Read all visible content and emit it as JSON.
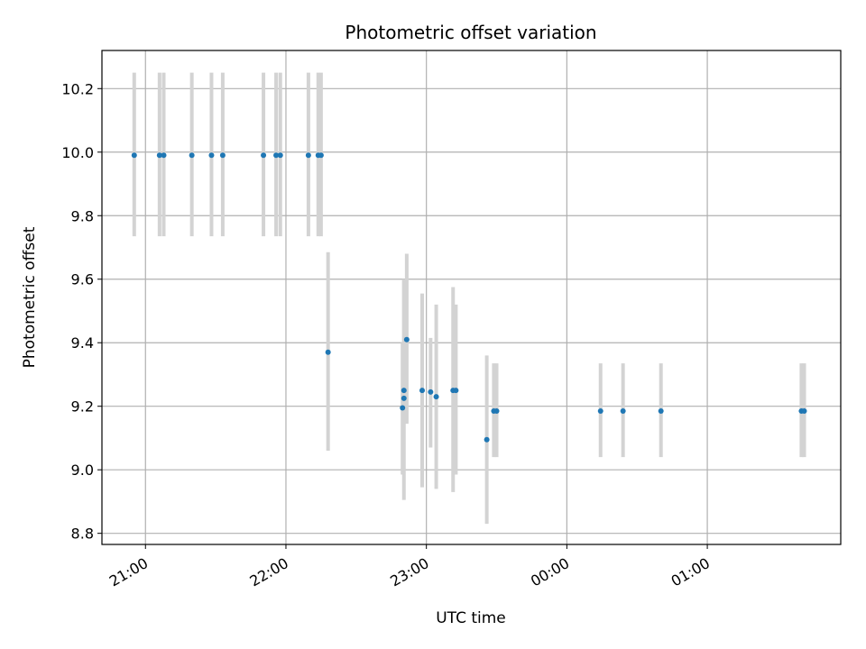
{
  "chart_data": {
    "type": "scatter",
    "title": "Photometric offset variation",
    "xlabel": "UTC time",
    "ylabel": "Photometric offset",
    "x_unit": "hours since 00:00 UTC of the first night",
    "xlim": [
      20.69,
      25.95
    ],
    "ylim": [
      8.765,
      10.32
    ],
    "x_ticks": [
      {
        "value": 21,
        "label": "21:00"
      },
      {
        "value": 22,
        "label": "22:00"
      },
      {
        "value": 23,
        "label": "23:00"
      },
      {
        "value": 24,
        "label": "00:00"
      },
      {
        "value": 25,
        "label": "01:00"
      }
    ],
    "y_ticks": [
      {
        "value": 8.8,
        "label": "8.8"
      },
      {
        "value": 9.0,
        "label": "9.0"
      },
      {
        "value": 9.2,
        "label": "9.2"
      },
      {
        "value": 9.4,
        "label": "9.4"
      },
      {
        "value": 9.6,
        "label": "9.6"
      },
      {
        "value": 9.8,
        "label": "9.8"
      },
      {
        "value": 10.0,
        "label": "10.0"
      },
      {
        "value": 10.2,
        "label": "10.2"
      }
    ],
    "grid": true,
    "point_color": "#1f77b4",
    "errorbar_color": "#d3d3d3",
    "series": [
      {
        "x": [
          20.92,
          21.1,
          21.13,
          21.33,
          21.47,
          21.55,
          21.84,
          21.93,
          21.96,
          22.16,
          22.23,
          22.25,
          22.3,
          22.83,
          22.84,
          22.84,
          22.86,
          22.97,
          23.03,
          23.07,
          23.19,
          23.21,
          23.43,
          23.48,
          23.5,
          24.24,
          24.4,
          24.67,
          25.67,
          25.69
        ],
        "y": [
          9.99,
          9.99,
          9.99,
          9.99,
          9.99,
          9.99,
          9.99,
          9.99,
          9.99,
          9.99,
          9.99,
          9.99,
          9.37,
          9.195,
          9.225,
          9.25,
          9.41,
          9.25,
          9.245,
          9.23,
          9.25,
          9.25,
          9.095,
          9.185,
          9.185,
          9.185,
          9.185,
          9.185,
          9.185,
          9.185
        ],
        "y_err_low": [
          9.735,
          9.735,
          9.735,
          9.735,
          9.735,
          9.735,
          9.735,
          9.735,
          9.735,
          9.735,
          9.735,
          9.735,
          9.06,
          8.985,
          8.905,
          9.165,
          9.145,
          8.945,
          9.07,
          8.94,
          8.93,
          8.985,
          8.83,
          9.04,
          9.04,
          9.04,
          9.04,
          9.04,
          9.04,
          9.04
        ],
        "y_err_high": [
          10.25,
          10.25,
          10.25,
          10.25,
          10.25,
          10.25,
          10.25,
          10.25,
          10.25,
          10.25,
          10.25,
          10.25,
          9.685,
          9.4,
          9.595,
          9.6,
          9.68,
          9.555,
          9.415,
          9.52,
          9.575,
          9.52,
          9.36,
          9.335,
          9.335,
          9.335,
          9.335,
          9.335,
          9.335,
          9.335
        ]
      }
    ]
  }
}
